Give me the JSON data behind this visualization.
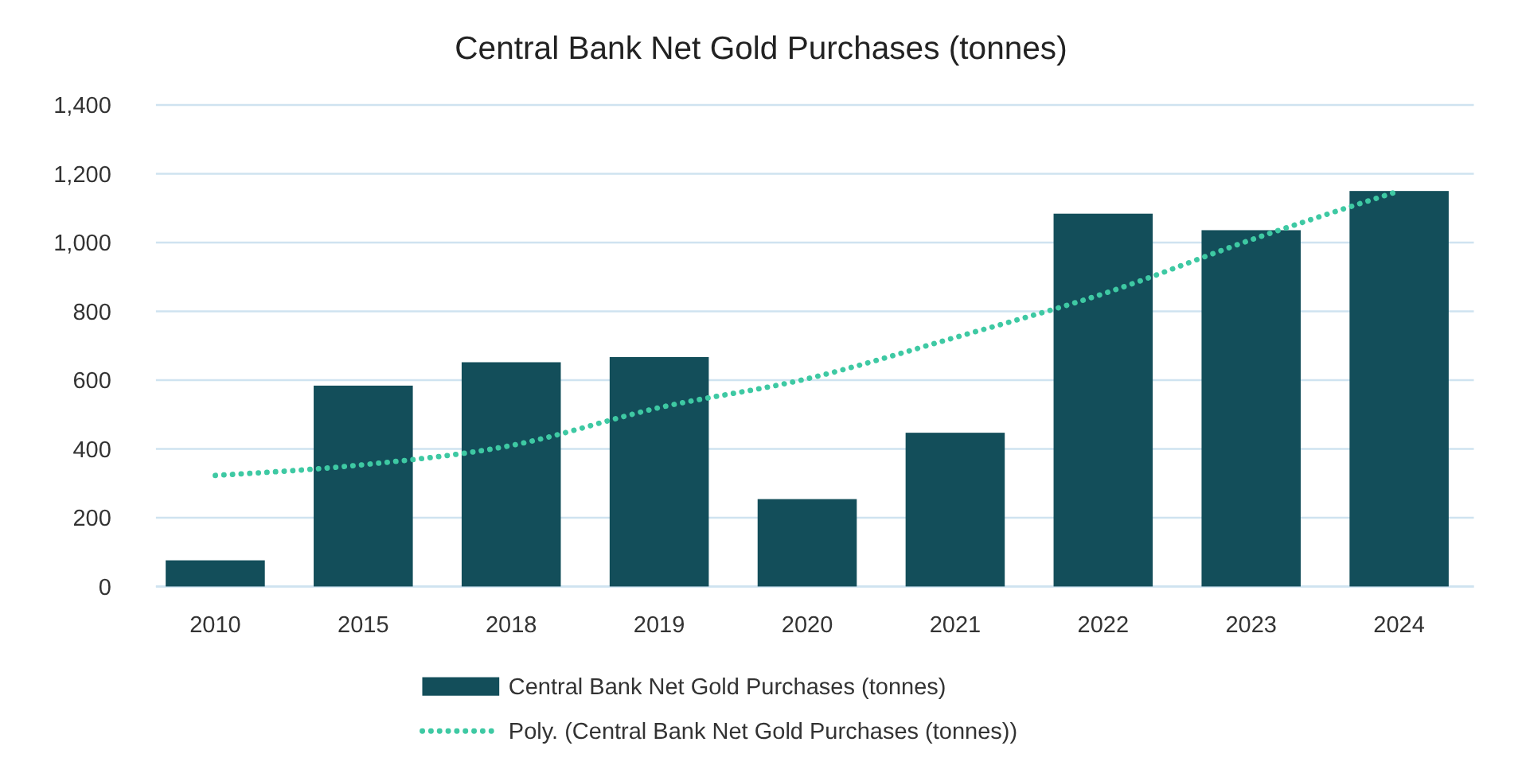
{
  "chart_data": {
    "type": "bar",
    "title": "Central Bank Net Gold Purchases (tonnes)",
    "categories": [
      "2010",
      "2015",
      "2018",
      "2019",
      "2020",
      "2021",
      "2022",
      "2023",
      "2024"
    ],
    "series": [
      {
        "name": "Central Bank Net Gold Purchases (tonnes)",
        "color": "#134e5a",
        "values": [
          76,
          584,
          652,
          667,
          254,
          447,
          1084,
          1036,
          1150
        ]
      },
      {
        "name": "Poly. (Central Bank Net Gold Purchases (tonnes))",
        "type": "line",
        "color": "#3ec9a3",
        "line_style": "dotted",
        "values": [
          323,
          354,
          410,
          520,
          604,
          724,
          851,
          1008,
          1150
        ]
      }
    ],
    "ylim": [
      0,
      1400
    ],
    "yticks": [
      {
        "value": 0,
        "label": "0"
      },
      {
        "value": 200,
        "label": "200"
      },
      {
        "value": 400,
        "label": "400"
      },
      {
        "value": 600,
        "label": "600"
      },
      {
        "value": 800,
        "label": "800"
      },
      {
        "value": 1000,
        "label": "1,000"
      },
      {
        "value": 1200,
        "label": "1,200"
      },
      {
        "value": 1400,
        "label": "1,400"
      }
    ],
    "grid": "y",
    "legend": "bottom"
  }
}
